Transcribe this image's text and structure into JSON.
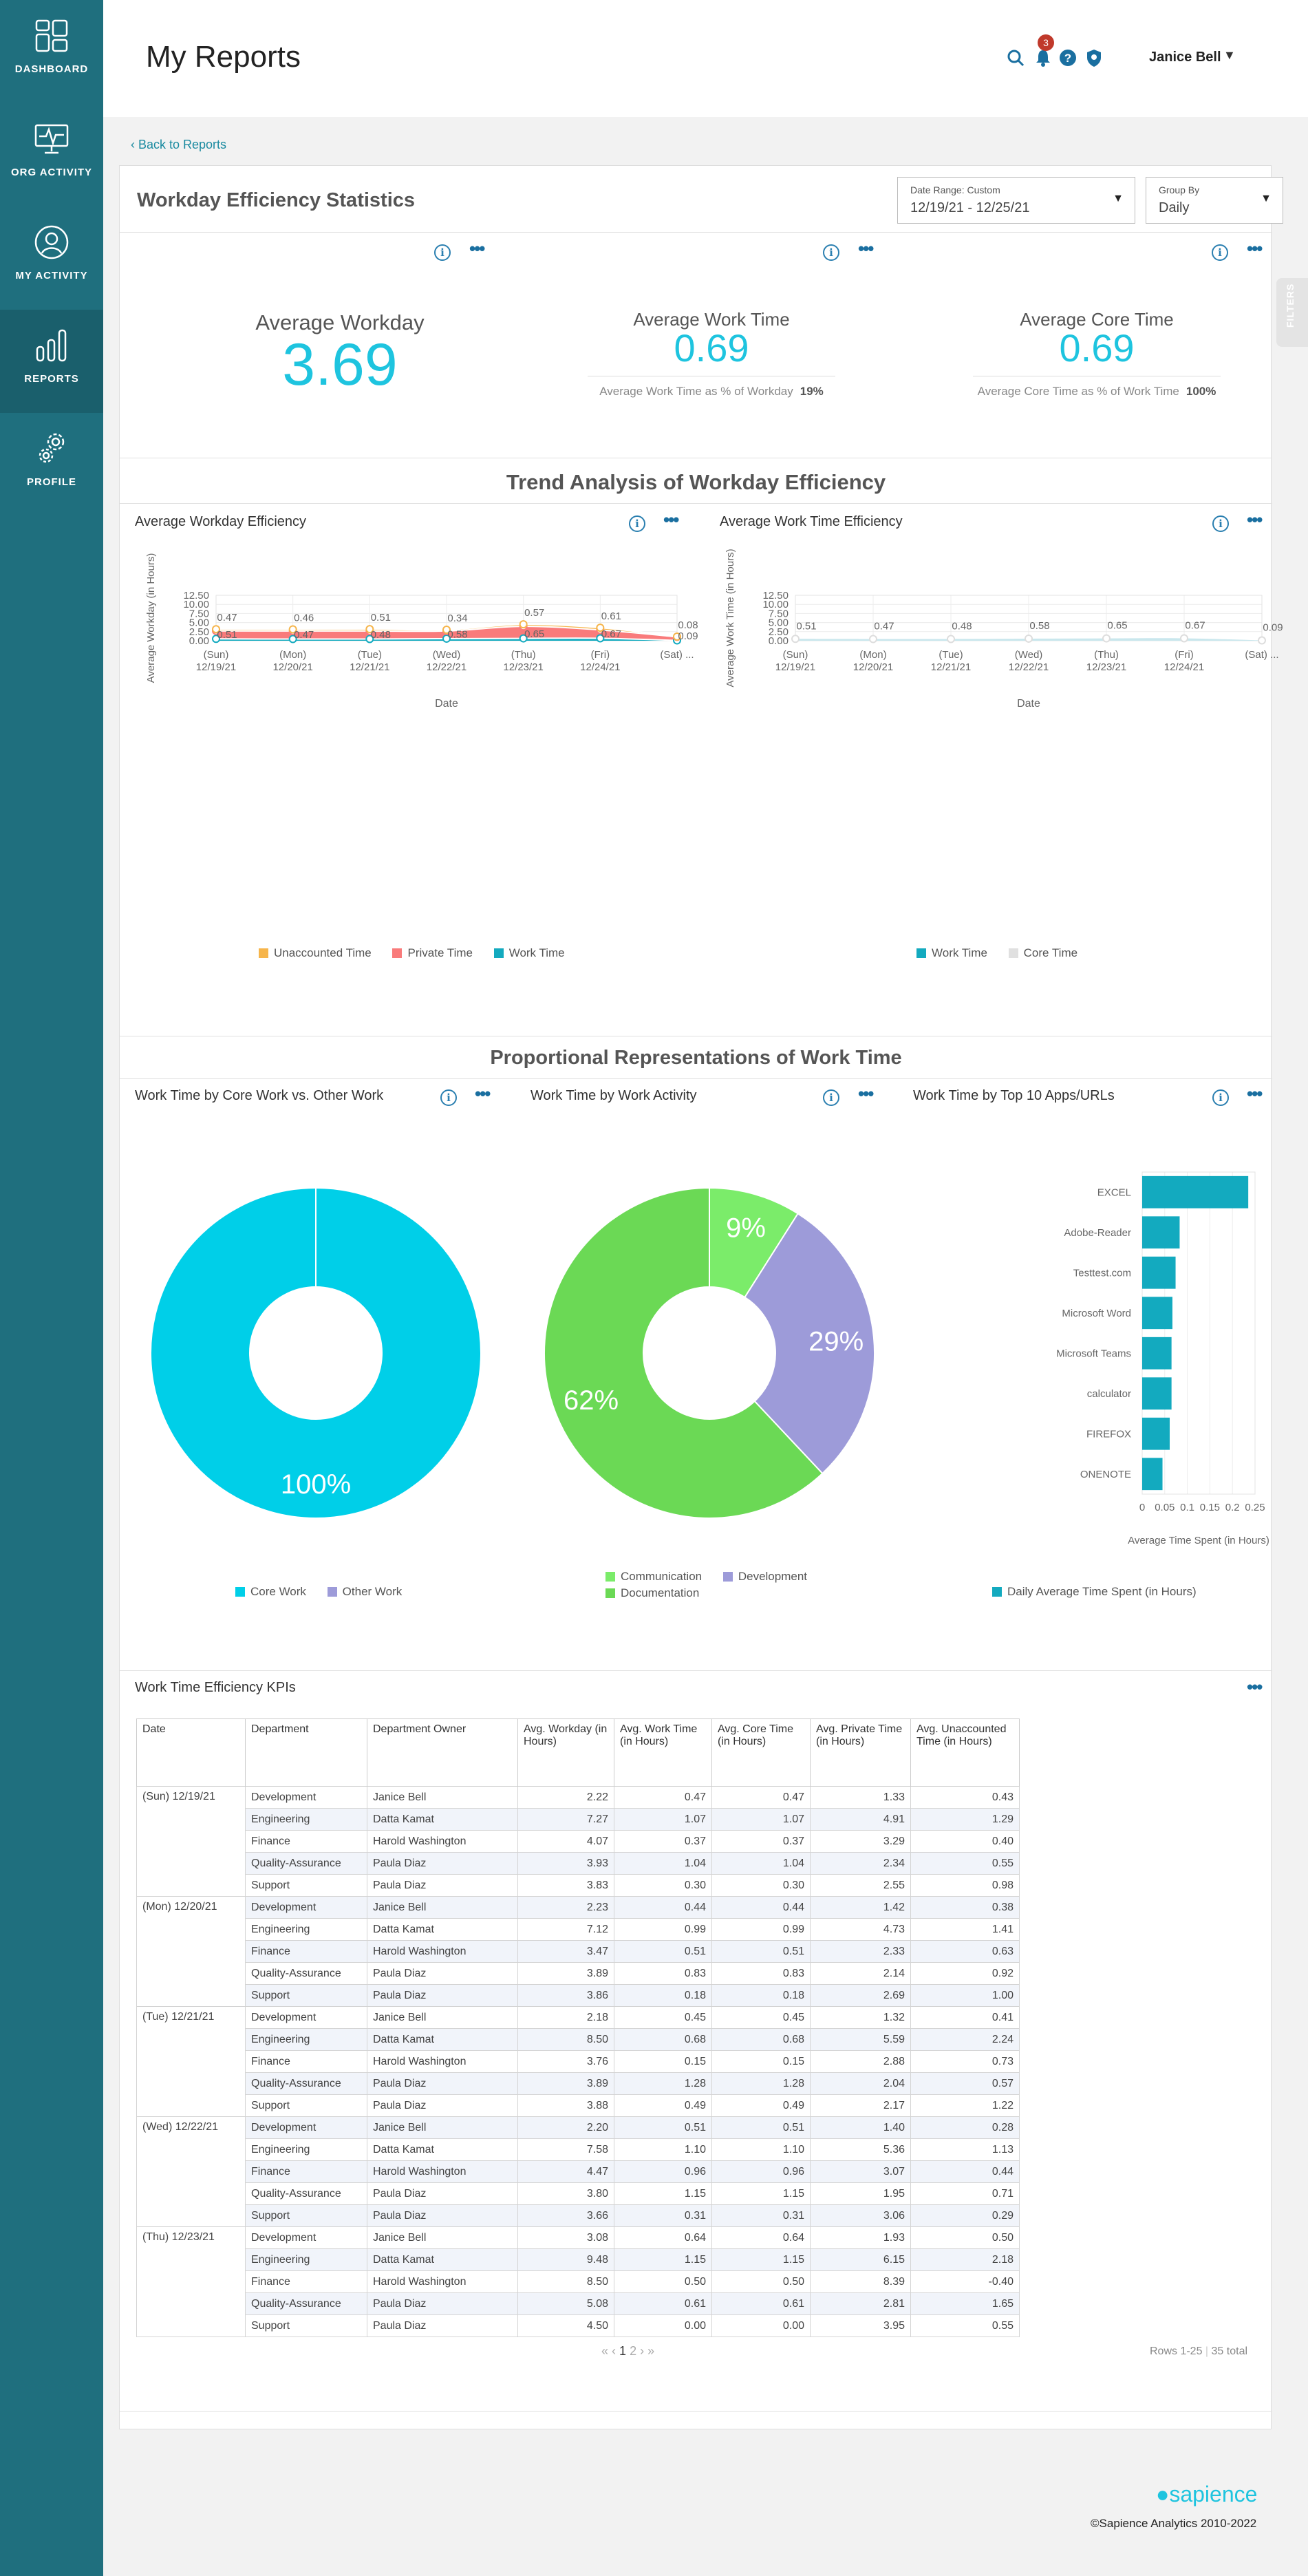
{
  "nav": [
    {
      "label": "DASHBOARD",
      "icon": "dashboard-icon"
    },
    {
      "label": "ORG ACTIVITY",
      "icon": "monitor-pulse-icon"
    },
    {
      "label": "MY ACTIVITY",
      "icon": "user-icon"
    },
    {
      "label": "REPORTS",
      "icon": "bar-chart-icon"
    },
    {
      "label": "PROFILE",
      "icon": "gear-icon"
    }
  ],
  "header": {
    "title": "My Reports",
    "notifications": "3",
    "user": "Janice Bell"
  },
  "back_link": "Back to Reports",
  "filters_tab": "FILTERS",
  "report": {
    "title": "Workday Efficiency Statistics",
    "date_range": {
      "label": "Date Range: Custom",
      "value": "12/19/21 - 12/25/21"
    },
    "group_by": {
      "label": "Group By",
      "value": "Daily"
    }
  },
  "kpis": {
    "avg_workday": {
      "label": "Average Workday",
      "value": "3.69"
    },
    "avg_work_time": {
      "label": "Average Work Time",
      "value": "0.69",
      "sub_label": "Average Work Time as % of Workday",
      "sub_value": "19%"
    },
    "avg_core_time": {
      "label": "Average Core Time",
      "value": "0.69",
      "sub_label": "Average Core Time as % of Work Time",
      "sub_value": "100%"
    }
  },
  "trend_title": "Trend Analysis of Workday Efficiency",
  "proportional_title": "Proportional Representations of Work Time",
  "chart_data": [
    {
      "type": "area",
      "title": "Average Workday Efficiency",
      "xlabel": "Date",
      "ylabel": "Average Workday (in Hours)",
      "ylim": [
        0,
        12.5
      ],
      "yticks": [
        "0.00",
        "2.50",
        "5.00",
        "7.50",
        "10.00",
        "12.50"
      ],
      "categories": [
        [
          "(Sun)",
          "12/19/21"
        ],
        [
          "(Mon)",
          "12/20/21"
        ],
        [
          "(Tue)",
          "12/21/21"
        ],
        [
          "(Wed)",
          "12/22/21"
        ],
        [
          "(Thu)",
          "12/23/21"
        ],
        [
          "(Fri)",
          "12/24/21"
        ],
        [
          "(Sat) ...",
          ""
        ]
      ],
      "stacked": true,
      "series": [
        {
          "name": "Work Time",
          "color": "#13aabf",
          "values": [
            0.51,
            0.47,
            0.48,
            0.58,
            0.65,
            0.67,
            0.09
          ]
        },
        {
          "name": "Private Time",
          "color": "#f97b7b",
          "values": [
            2.2,
            2.2,
            2.2,
            2.1,
            3.3,
            2.3,
            0.97
          ]
        },
        {
          "name": "Unaccounted Time",
          "color": "#f6b54b",
          "values": [
            0.47,
            0.46,
            0.51,
            0.34,
            0.57,
            0.61,
            0.08
          ]
        }
      ],
      "labels": {
        "Work Time": [
          "0.51",
          "0.47",
          "0.48",
          "0.58",
          "0.65",
          "0.67",
          "0.09"
        ],
        "Unaccounted Time": [
          "0.47",
          "0.46",
          "0.51",
          "0.34",
          "0.57",
          "0.61",
          "0.08"
        ]
      },
      "legend": "bottom"
    },
    {
      "type": "area",
      "title": "Average Work Time Efficiency",
      "xlabel": "Date",
      "ylabel": "Average Work Time (in Hours)",
      "ylim": [
        0,
        12.5
      ],
      "yticks": [
        "0.00",
        "2.50",
        "5.00",
        "7.50",
        "10.00",
        "12.50"
      ],
      "categories": [
        [
          "(Sun)",
          "12/19/21"
        ],
        [
          "(Mon)",
          "12/20/21"
        ],
        [
          "(Tue)",
          "12/21/21"
        ],
        [
          "(Wed)",
          "12/22/21"
        ],
        [
          "(Thu)",
          "12/23/21"
        ],
        [
          "(Fri)",
          "12/24/21"
        ],
        [
          "(Sat) ...",
          ""
        ]
      ],
      "series": [
        {
          "name": "Work Time",
          "color": "#13aabf",
          "values": [
            0.51,
            0.47,
            0.48,
            0.58,
            0.65,
            0.67,
            0.09
          ]
        },
        {
          "name": "Core Time",
          "color": "#c9e7ed",
          "values": [
            0.51,
            0.47,
            0.48,
            0.58,
            0.65,
            0.67,
            0.09
          ]
        }
      ],
      "labels": [
        "0.51",
        "0.47",
        "0.48",
        "0.58",
        "0.65",
        "0.67",
        "0.09"
      ],
      "legend": "bottom"
    },
    {
      "type": "pie",
      "title": "Work Time by Core Work vs. Other Work",
      "slices": [
        {
          "name": "Core Work",
          "value": 100,
          "label": "100%",
          "color": "#00cfe8"
        },
        {
          "name": "Other Work",
          "value": 0,
          "label": "",
          "color": "#9d9bd9"
        }
      ]
    },
    {
      "type": "pie",
      "title": "Work Time by Work Activity",
      "slices": [
        {
          "name": "Communication",
          "value": 9,
          "label": "9%",
          "color": "#7bec6a"
        },
        {
          "name": "Development",
          "value": 29,
          "label": "29%",
          "color": "#9d9bd9"
        },
        {
          "name": "Documentation",
          "value": 62,
          "label": "62%",
          "color": "#6bd955"
        }
      ]
    },
    {
      "type": "bar",
      "orientation": "horizontal",
      "title": "Work Time by Top 10 Apps/URLs",
      "categories": [
        "EXCEL",
        "Adobe-Reader",
        "Testtest.com",
        "Microsoft Word",
        "Microsoft Teams",
        "calculator",
        "FIREFOX",
        "ONENOTE"
      ],
      "values": [
        0.235,
        0.083,
        0.074,
        0.067,
        0.065,
        0.065,
        0.061,
        0.045
      ],
      "xlabel": "Average Time Spent (in Hours)",
      "xlim": [
        0,
        0.25
      ],
      "xticks": [
        "0",
        "0.05",
        "0.1",
        "0.15",
        "0.2",
        "0.25"
      ],
      "series_name": "Daily Average Time Spent (in Hours)",
      "color": "#13aabf"
    }
  ],
  "table": {
    "title": "Work Time Efficiency KPIs",
    "headers": [
      "Date",
      "Department",
      "Department Owner",
      "Avg. Workday (in Hours)",
      "Avg. Work Time (in Hours)",
      "Avg. Core Time (in Hours)",
      "Avg. Private Time (in Hours)",
      "Avg. Unaccounted Time (in Hours)"
    ],
    "groups": [
      {
        "date": "(Sun) 12/19/21",
        "rows": [
          [
            "Development",
            "Janice Bell",
            "2.22",
            "0.47",
            "0.47",
            "1.33",
            "0.43"
          ],
          [
            "Engineering",
            "Datta Kamat",
            "7.27",
            "1.07",
            "1.07",
            "4.91",
            "1.29"
          ],
          [
            "Finance",
            "Harold Washington",
            "4.07",
            "0.37",
            "0.37",
            "3.29",
            "0.40"
          ],
          [
            "Quality-Assurance",
            "Paula Diaz",
            "3.93",
            "1.04",
            "1.04",
            "2.34",
            "0.55"
          ],
          [
            "Support",
            "Paula Diaz",
            "3.83",
            "0.30",
            "0.30",
            "2.55",
            "0.98"
          ]
        ]
      },
      {
        "date": "(Mon) 12/20/21",
        "rows": [
          [
            "Development",
            "Janice Bell",
            "2.23",
            "0.44",
            "0.44",
            "1.42",
            "0.38"
          ],
          [
            "Engineering",
            "Datta Kamat",
            "7.12",
            "0.99",
            "0.99",
            "4.73",
            "1.41"
          ],
          [
            "Finance",
            "Harold Washington",
            "3.47",
            "0.51",
            "0.51",
            "2.33",
            "0.63"
          ],
          [
            "Quality-Assurance",
            "Paula Diaz",
            "3.89",
            "0.83",
            "0.83",
            "2.14",
            "0.92"
          ],
          [
            "Support",
            "Paula Diaz",
            "3.86",
            "0.18",
            "0.18",
            "2.69",
            "1.00"
          ]
        ]
      },
      {
        "date": "(Tue) 12/21/21",
        "rows": [
          [
            "Development",
            "Janice Bell",
            "2.18",
            "0.45",
            "0.45",
            "1.32",
            "0.41"
          ],
          [
            "Engineering",
            "Datta Kamat",
            "8.50",
            "0.68",
            "0.68",
            "5.59",
            "2.24"
          ],
          [
            "Finance",
            "Harold Washington",
            "3.76",
            "0.15",
            "0.15",
            "2.88",
            "0.73"
          ],
          [
            "Quality-Assurance",
            "Paula Diaz",
            "3.89",
            "1.28",
            "1.28",
            "2.04",
            "0.57"
          ],
          [
            "Support",
            "Paula Diaz",
            "3.88",
            "0.49",
            "0.49",
            "2.17",
            "1.22"
          ]
        ]
      },
      {
        "date": "(Wed) 12/22/21",
        "rows": [
          [
            "Development",
            "Janice Bell",
            "2.20",
            "0.51",
            "0.51",
            "1.40",
            "0.28"
          ],
          [
            "Engineering",
            "Datta Kamat",
            "7.58",
            "1.10",
            "1.10",
            "5.36",
            "1.13"
          ],
          [
            "Finance",
            "Harold Washington",
            "4.47",
            "0.96",
            "0.96",
            "3.07",
            "0.44"
          ],
          [
            "Quality-Assurance",
            "Paula Diaz",
            "3.80",
            "1.15",
            "1.15",
            "1.95",
            "0.71"
          ],
          [
            "Support",
            "Paula Diaz",
            "3.66",
            "0.31",
            "0.31",
            "3.06",
            "0.29"
          ]
        ]
      },
      {
        "date": "(Thu) 12/23/21",
        "rows": [
          [
            "Development",
            "Janice Bell",
            "3.08",
            "0.64",
            "0.64",
            "1.93",
            "0.50"
          ],
          [
            "Engineering",
            "Datta Kamat",
            "9.48",
            "1.15",
            "1.15",
            "6.15",
            "2.18"
          ],
          [
            "Finance",
            "Harold Washington",
            "8.50",
            "0.50",
            "0.50",
            "8.39",
            "-0.40"
          ],
          [
            "Quality-Assurance",
            "Paula Diaz",
            "5.08",
            "0.61",
            "0.61",
            "2.81",
            "1.65"
          ],
          [
            "Support",
            "Paula Diaz",
            "4.50",
            "0.00",
            "0.00",
            "3.95",
            "0.55"
          ]
        ]
      }
    ],
    "pager": {
      "first": "«",
      "prev": "‹",
      "pages": [
        "1",
        "2"
      ],
      "next": "›",
      "last": "»"
    },
    "rows_info": "Rows 1-25",
    "total": "35 total"
  },
  "footer": {
    "brand": "sapience",
    "copyright": "©Sapience Analytics 2010-2022"
  }
}
